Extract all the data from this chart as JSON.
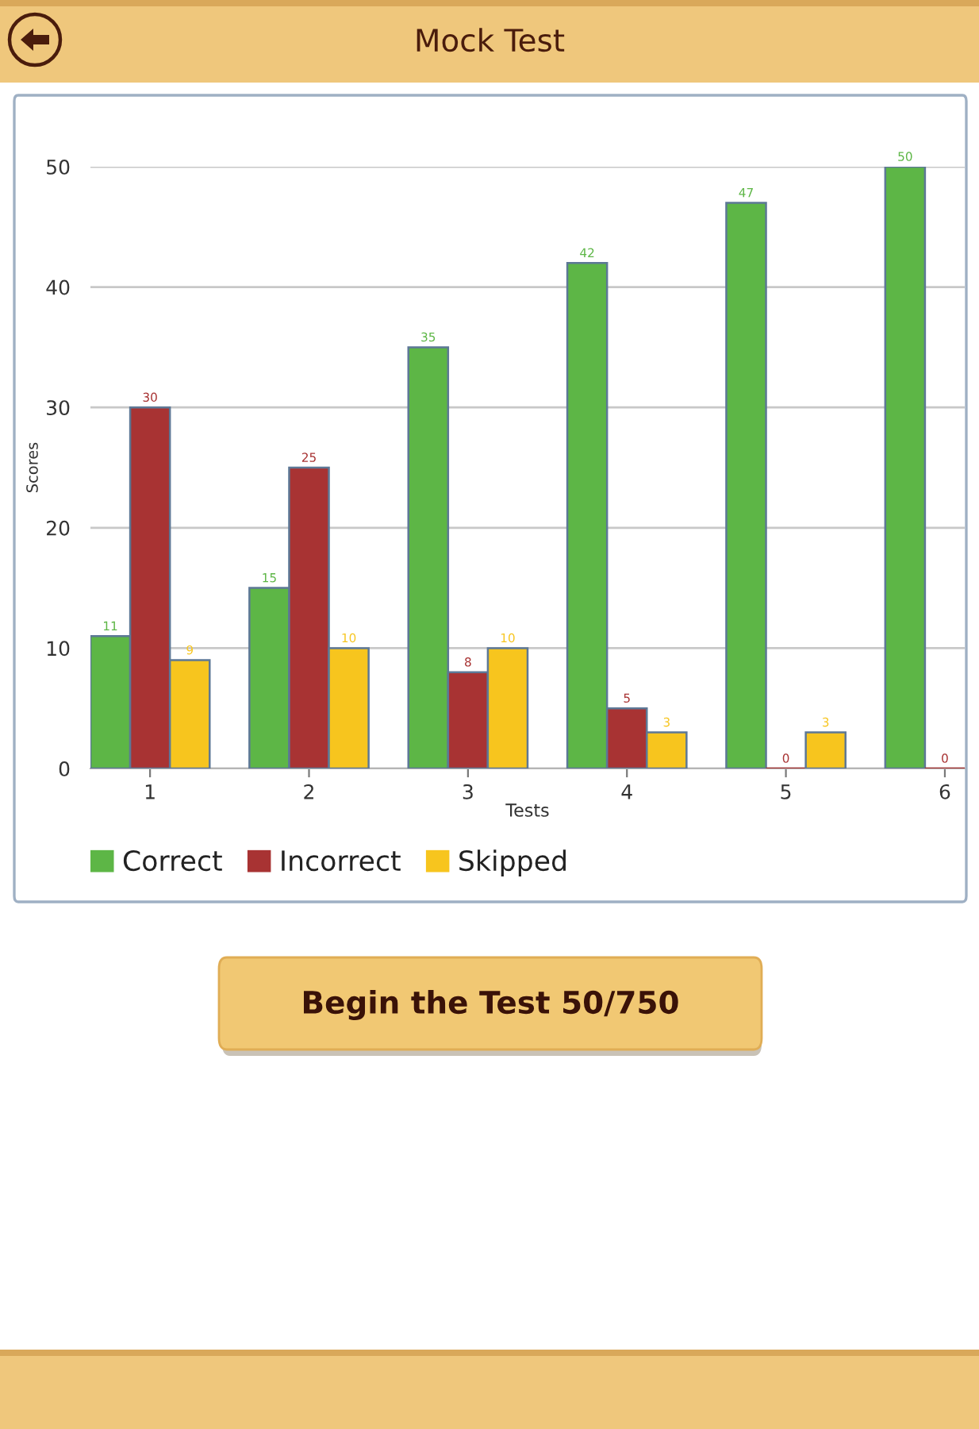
{
  "chart_data": {
    "type": "bar",
    "title": "Mock Test",
    "xlabel": "Tests",
    "ylabel": "Scores",
    "categories": [
      "1",
      "2",
      "3",
      "4",
      "5",
      "6"
    ],
    "series": [
      {
        "name": "Correct",
        "color": "#5db646",
        "values": [
          11,
          15,
          35,
          42,
          47,
          50
        ]
      },
      {
        "name": "Incorrect",
        "color": "#a83333",
        "values": [
          30,
          25,
          8,
          5,
          0,
          0
        ]
      },
      {
        "name": "Skipped",
        "color": "#f7c51e",
        "values": [
          9,
          10,
          10,
          3,
          3,
          null
        ]
      }
    ],
    "ylim": [
      0,
      50
    ],
    "yticks": [
      0,
      10,
      20,
      30,
      40,
      50
    ],
    "grid": "y",
    "legend": "bottom",
    "data_labels": true,
    "annotations": [
      "Begin the Test 50/750"
    ]
  }
}
